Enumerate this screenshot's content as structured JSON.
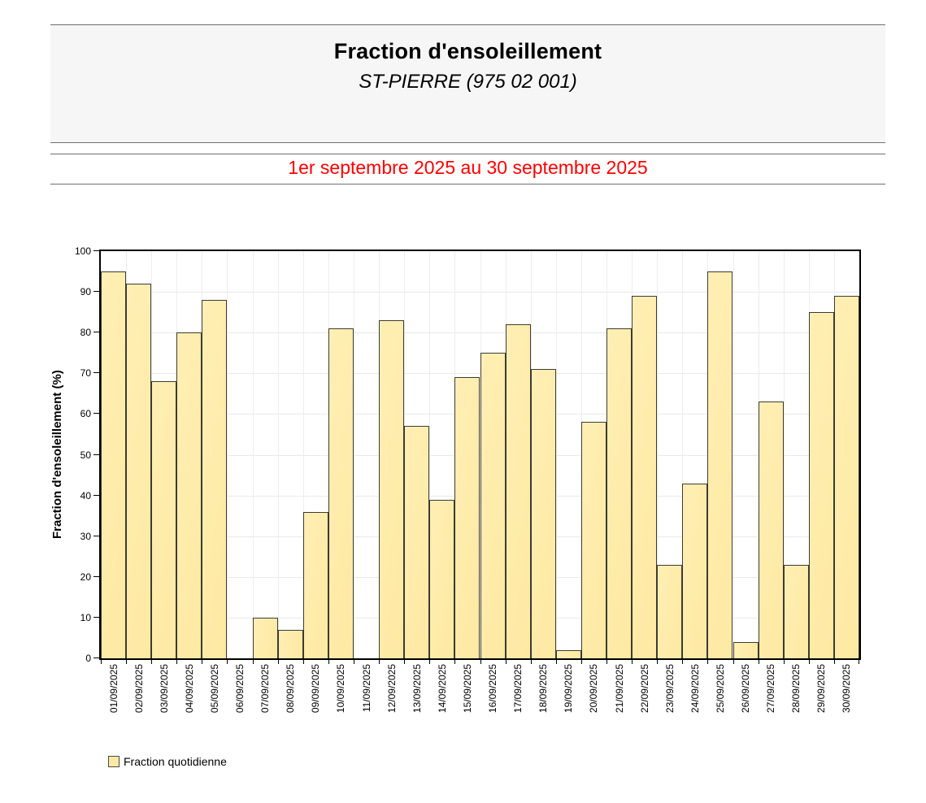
{
  "header": {
    "title": "Fraction d'ensoleillement",
    "subtitle": "ST-PIERRE (975 02 001)",
    "period": "1er septembre 2025 au 30 septembre 2025",
    "period_color": "#ff0000",
    "band_background": "#f6f6f6",
    "rule_color": "#6f6f6f"
  },
  "legend": {
    "label": "Fraction quotidienne",
    "swatch_color": "#fce9a2"
  },
  "chart_data": {
    "type": "bar",
    "title": "Fraction d'ensoleillement",
    "subtitle": "ST-PIERRE (975 02 001)",
    "xlabel": "",
    "ylabel": "Fraction d'ensoleillement (%)",
    "ylim": [
      0,
      100
    ],
    "yticks": [
      0,
      10,
      20,
      30,
      40,
      50,
      60,
      70,
      80,
      90,
      100
    ],
    "grid": true,
    "legend_position": "bottom-left",
    "legend_label": "Fraction quotidienne",
    "bar_fill": "#fde9a2",
    "bar_fill_light": "#ffefb4",
    "bar_border": "#3b3b33",
    "grid_color": "#e9e9e9",
    "categories": [
      "01/09/2025",
      "02/09/2025",
      "03/09/2025",
      "04/09/2025",
      "05/09/2025",
      "06/09/2025",
      "07/09/2025",
      "08/09/2025",
      "09/09/2025",
      "10/09/2025",
      "11/09/2025",
      "12/09/2025",
      "13/09/2025",
      "14/09/2025",
      "15/09/2025",
      "16/09/2025",
      "17/09/2025",
      "18/09/2025",
      "19/09/2025",
      "20/09/2025",
      "21/09/2025",
      "22/09/2025",
      "23/09/2025",
      "24/09/2025",
      "25/09/2025",
      "26/09/2025",
      "27/09/2025",
      "28/09/2025",
      "29/09/2025",
      "30/09/2025"
    ],
    "values": [
      95,
      92,
      68,
      80,
      88,
      0,
      10,
      7,
      36,
      81,
      0,
      83,
      57,
      39,
      69,
      75,
      82,
      71,
      2,
      58,
      81,
      89,
      23,
      43,
      95,
      4,
      63,
      23,
      85,
      89
    ]
  }
}
